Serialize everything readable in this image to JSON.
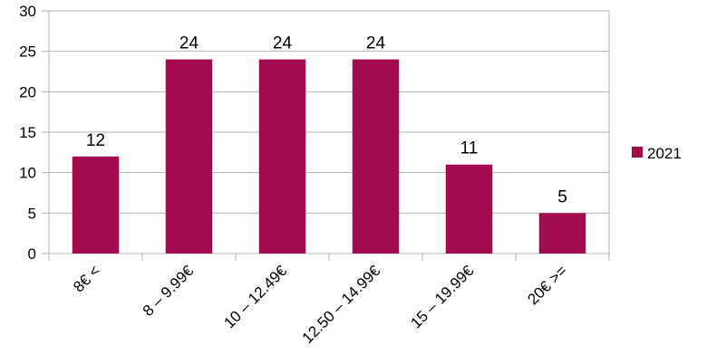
{
  "chart_data": {
    "type": "bar",
    "categories": [
      "8€ <",
      "8 – 9.99€",
      "10 – 12.49€",
      "12.50 – 14.99€",
      "15 – 19.99€",
      "20€ >="
    ],
    "series": [
      {
        "name": "2021",
        "values": [
          12,
          24,
          24,
          24,
          11,
          5
        ],
        "color": "#a30b4f"
      }
    ],
    "data_labels": [
      "12",
      "24",
      "24",
      "24",
      "11",
      "5"
    ],
    "y_ticks": [
      "0",
      "5",
      "10",
      "15",
      "20",
      "25",
      "30"
    ],
    "ylim": [
      0,
      30
    ],
    "grid": true,
    "legend_position": "right",
    "title": "",
    "xlabel": "",
    "ylabel": ""
  }
}
